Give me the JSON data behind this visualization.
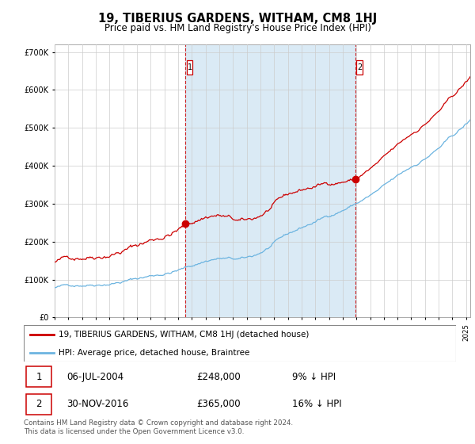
{
  "title": "19, TIBERIUS GARDENS, WITHAM, CM8 1HJ",
  "subtitle": "Price paid vs. HM Land Registry's House Price Index (HPI)",
  "ytick_vals": [
    0,
    100000,
    200000,
    300000,
    400000,
    500000,
    600000,
    700000
  ],
  "ylim": [
    0,
    720000
  ],
  "sale1_t": 2004.54,
  "sale1_p": 248000,
  "sale2_t": 2016.92,
  "sale2_p": 365000,
  "legend_entry1": "19, TIBERIUS GARDENS, WITHAM, CM8 1HJ (detached house)",
  "legend_entry2": "HPI: Average price, detached house, Braintree",
  "table_rows": [
    [
      "1",
      "06-JUL-2004",
      "£248,000",
      "9% ↓ HPI"
    ],
    [
      "2",
      "30-NOV-2016",
      "£365,000",
      "16% ↓ HPI"
    ]
  ],
  "footnote": "Contains HM Land Registry data © Crown copyright and database right 2024.\nThis data is licensed under the Open Government Licence v3.0.",
  "hpi_color": "#6cb4e0",
  "sale_color": "#cc0000",
  "shade_color": "#daeaf5",
  "background_color": "#ffffff",
  "grid_color": "#cccccc",
  "xlim_left": 1995,
  "xlim_right": 2025.3
}
